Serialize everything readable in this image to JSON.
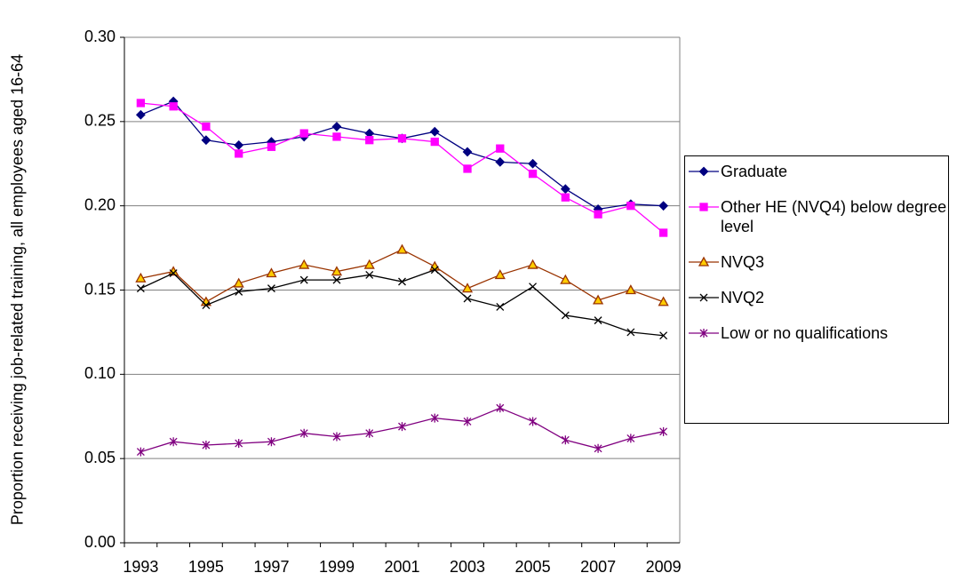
{
  "chart_data": {
    "type": "line",
    "y_label": "Proportion receiving job-related training, all employees aged 16-64",
    "categories": [
      "1993",
      null,
      "1995",
      null,
      "1997",
      null,
      "1999",
      null,
      "2001",
      null,
      "2003",
      null,
      "2005",
      null,
      "2007",
      null,
      "2009"
    ],
    "ylim": [
      0,
      0.3
    ],
    "yticks": [
      {
        "value": 0,
        "label": "0.00"
      },
      {
        "value": 0.05,
        "label": "0.05"
      },
      {
        "value": 0.1,
        "label": "0.10"
      },
      {
        "value": 0.15,
        "label": "0.15"
      },
      {
        "value": 0.2,
        "label": "0.20"
      },
      {
        "value": 0.25,
        "label": "0.25"
      },
      {
        "value": 0.3,
        "label": "0.30"
      }
    ],
    "grid": true,
    "legend": "right",
    "series": [
      {
        "name": "Graduate",
        "color": "#000080",
        "marker": "diamond",
        "marker_fill": "#000080",
        "values": [
          0.254,
          0.262,
          0.239,
          0.236,
          0.238,
          0.241,
          0.247,
          0.243,
          0.24,
          0.244,
          0.232,
          0.226,
          0.225,
          0.21,
          0.198,
          0.201,
          0.2
        ]
      },
      {
        "name": "Other HE (NVQ4) below degree level",
        "color": "#ff00ff",
        "marker": "square",
        "marker_fill": "#ff00ff",
        "values": [
          0.261,
          0.259,
          0.247,
          0.231,
          0.235,
          0.243,
          0.241,
          0.239,
          0.24,
          0.238,
          0.222,
          0.234,
          0.219,
          0.205,
          0.195,
          0.2,
          0.184
        ]
      },
      {
        "name": "NVQ3",
        "color": "#993300",
        "marker": "triangle",
        "marker_fill": "#ffcc00",
        "values": [
          0.157,
          0.161,
          0.143,
          0.154,
          0.16,
          0.165,
          0.161,
          0.165,
          0.174,
          0.164,
          0.151,
          0.159,
          0.165,
          0.156,
          0.144,
          0.15,
          0.143
        ]
      },
      {
        "name": "NVQ2",
        "color": "#000000",
        "marker": "x",
        "marker_fill": "none",
        "values": [
          0.151,
          0.16,
          0.141,
          0.149,
          0.151,
          0.156,
          0.156,
          0.159,
          0.155,
          0.162,
          0.145,
          0.14,
          0.152,
          0.135,
          0.132,
          0.125,
          0.123
        ]
      },
      {
        "name": "Low or no qualifications",
        "color": "#800080",
        "marker": "star",
        "marker_fill": "none",
        "values": [
          0.054,
          0.06,
          0.058,
          0.059,
          0.06,
          0.065,
          0.063,
          0.065,
          0.069,
          0.074,
          0.072,
          0.08,
          0.072,
          0.061,
          0.056,
          0.062,
          0.066
        ]
      }
    ]
  }
}
